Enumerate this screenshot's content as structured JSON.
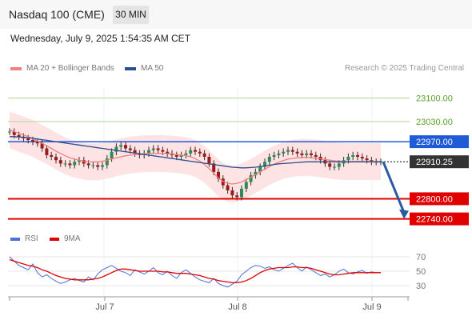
{
  "header": {
    "title": "Nasdaq 100 (CME)",
    "timeframe": "30 MIN"
  },
  "datetime": "Wednesday, July 9, 2025 1:54:35 AM CET",
  "credit": "Research © 2025 Trading Central",
  "legend": {
    "ma20": {
      "label": "MA 20 + Bollinger Bands",
      "color": "#f08080"
    },
    "ma50": {
      "label": "MA 50",
      "color": "#2a4f8f"
    },
    "rsi": {
      "label": "RSI",
      "color": "#4a72d8"
    },
    "ma9": {
      "label": "9MA",
      "color": "#e00000"
    }
  },
  "chart_data": [
    {
      "type": "line",
      "name": "price",
      "x_labels": [
        "Jul 7",
        "Jul 8",
        "Jul 9"
      ],
      "ylim": [
        22720,
        23130
      ],
      "levels": [
        {
          "value": 23100.0,
          "label": "23100.00",
          "kind": "resistance",
          "color": "#b7dba2"
        },
        {
          "value": 23030.0,
          "label": "23030.00",
          "kind": "resistance",
          "color": "#b7dba2"
        },
        {
          "value": 22970.0,
          "label": "22970.00",
          "kind": "pivot",
          "color": "#1f5bd6"
        },
        {
          "value": 22910.25,
          "label": "22910.25",
          "kind": "last",
          "color": "#333333"
        },
        {
          "value": 22800.0,
          "label": "22800.00",
          "kind": "support",
          "color": "#e00000"
        },
        {
          "value": 22740.0,
          "label": "22740.00",
          "kind": "support",
          "color": "#e00000"
        }
      ],
      "series": [
        {
          "name": "price",
          "values": [
            23000,
            22990,
            22985,
            22980,
            22975,
            22970,
            22965,
            22950,
            22930,
            22925,
            22915,
            22905,
            22905,
            22900,
            22910,
            22915,
            22905,
            22900,
            22900,
            22895,
            22900,
            22920,
            22940,
            22955,
            22960,
            22950,
            22945,
            22935,
            22930,
            22935,
            22945,
            22950,
            22945,
            22940,
            22935,
            22930,
            22925,
            22930,
            22935,
            22945,
            22940,
            22935,
            22925,
            22905,
            22880,
            22860,
            22840,
            22825,
            22810,
            22805,
            22830,
            22850,
            22870,
            22880,
            22895,
            22910,
            22925,
            22930,
            22935,
            22940,
            22945,
            22940,
            22935,
            22930,
            22935,
            22930,
            22925,
            22915,
            22905,
            22895,
            22895,
            22905,
            22915,
            22925,
            22930,
            22925,
            22920,
            22915,
            22910,
            22910,
            22910
          ]
        },
        {
          "name": "MA 20",
          "values": [
            23005,
            23000,
            22995,
            22990,
            22985,
            22980,
            22972,
            22965,
            22958,
            22950,
            22942,
            22935,
            22928,
            22922,
            22918,
            22915,
            22912,
            22910,
            22910,
            22910,
            22912,
            22915,
            22918,
            22922,
            22925,
            22928,
            22930,
            22932,
            22933,
            22934,
            22935,
            22935,
            22935,
            22935,
            22934,
            22933,
            22932,
            22930,
            22928,
            22925,
            22920,
            22912,
            22902,
            22890,
            22876,
            22862,
            22852,
            22846,
            22844,
            22846,
            22850,
            22857,
            22864,
            22872,
            22880,
            22888,
            22896,
            22903,
            22909,
            22914,
            22918,
            22920,
            22922,
            22923,
            22923,
            22922,
            22921,
            22919,
            22917,
            22915,
            22913,
            22912,
            22911,
            22911,
            22911,
            22911,
            22911,
            22911,
            22911,
            22911,
            22911
          ]
        },
        {
          "name": "MA 50",
          "values": [
            22985,
            22985,
            22984,
            22983,
            22982,
            22980,
            22978,
            22976,
            22974,
            22972,
            22970,
            22968,
            22966,
            22964,
            22962,
            22960,
            22958,
            22956,
            22954,
            22952,
            22950,
            22948,
            22946,
            22944,
            22942,
            22940,
            22938,
            22936,
            22934,
            22932,
            22930,
            22928,
            22926,
            22924,
            22922,
            22920,
            22918,
            22916,
            22914,
            22912,
            22910,
            22908,
            22906,
            22904,
            22902,
            22900,
            22898,
            22896,
            22894,
            22893,
            22892,
            22892,
            22893,
            22894,
            22896,
            22898,
            22900,
            22902,
            22904,
            22905,
            22906,
            22907,
            22908,
            22909,
            22910,
            22910,
            22910,
            22910,
            22910,
            22910,
            22910,
            22910,
            22910,
            22910,
            22910,
            22910,
            22910,
            22910,
            22910,
            22910,
            22910
          ]
        }
      ]
    },
    {
      "type": "line",
      "name": "oscillator",
      "ylim": [
        20,
        80
      ],
      "ticks": [
        70,
        50,
        30
      ],
      "series": [
        {
          "name": "RSI",
          "values": [
            70,
            64,
            58,
            55,
            52,
            60,
            48,
            42,
            45,
            40,
            36,
            33,
            35,
            38,
            40,
            37,
            35,
            42,
            38,
            46,
            52,
            55,
            58,
            54,
            50,
            48,
            44,
            52,
            49,
            46,
            50,
            55,
            48,
            45,
            50,
            44,
            40,
            48,
            52,
            47,
            42,
            38,
            36,
            34,
            40,
            33,
            30,
            28,
            32,
            36,
            45,
            50,
            55,
            58,
            57,
            54,
            56,
            52,
            50,
            54,
            58,
            61,
            55,
            50,
            56,
            52,
            48,
            44,
            46,
            42,
            45,
            50,
            53,
            48,
            46,
            49,
            51,
            47,
            49,
            48,
            48
          ]
        },
        {
          "name": "9MA",
          "values": [
            66,
            64,
            62,
            60,
            58,
            57,
            55,
            52,
            50,
            47,
            44,
            42,
            40,
            39,
            38,
            38,
            38,
            38,
            39,
            40,
            42,
            45,
            48,
            51,
            53,
            53,
            52,
            51,
            50,
            50,
            50,
            50,
            50,
            49,
            49,
            48,
            47,
            47,
            47,
            46,
            45,
            44,
            42,
            40,
            39,
            37,
            36,
            35,
            34,
            34,
            35,
            37,
            40,
            44,
            48,
            51,
            53,
            54,
            55,
            55,
            55,
            56,
            56,
            55,
            55,
            54,
            52,
            50,
            48,
            46,
            45,
            45,
            46,
            47,
            48,
            48,
            48,
            48,
            48,
            48,
            48
          ]
        }
      ]
    }
  ]
}
